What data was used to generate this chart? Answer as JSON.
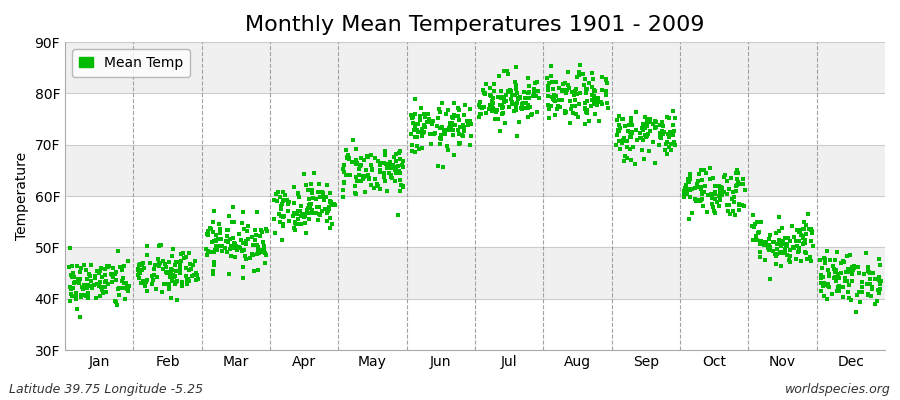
{
  "title": "Monthly Mean Temperatures 1901 - 2009",
  "ylabel": "Temperature",
  "xlabel_labels": [
    "Jan",
    "Feb",
    "Mar",
    "Apr",
    "May",
    "Jun",
    "Jul",
    "Aug",
    "Sep",
    "Oct",
    "Nov",
    "Dec"
  ],
  "ytick_labels": [
    "30F",
    "40F",
    "50F",
    "60F",
    "70F",
    "80F",
    "90F"
  ],
  "ytick_values": [
    30,
    40,
    50,
    60,
    70,
    80,
    90
  ],
  "ylim": [
    30,
    90
  ],
  "monthly_means": [
    43,
    45,
    51,
    58,
    65,
    73,
    79,
    79,
    72,
    61,
    51,
    44
  ],
  "monthly_stds": [
    2.5,
    2.5,
    2.5,
    2.5,
    2.5,
    2.5,
    2.5,
    2.5,
    2.5,
    2.5,
    2.5,
    2.5
  ],
  "n_years": 109,
  "marker_color": "#00bb00",
  "marker_size": 3,
  "plot_bg": "#f0f0f0",
  "band_color": "#e2e2e2",
  "fig_bg": "#ffffff",
  "legend_label": "Mean Temp",
  "footer_left": "Latitude 39.75 Longitude -5.25",
  "footer_right": "worldspecies.org",
  "title_fontsize": 16,
  "axis_label_fontsize": 10,
  "tick_fontsize": 10,
  "footer_fontsize": 9
}
